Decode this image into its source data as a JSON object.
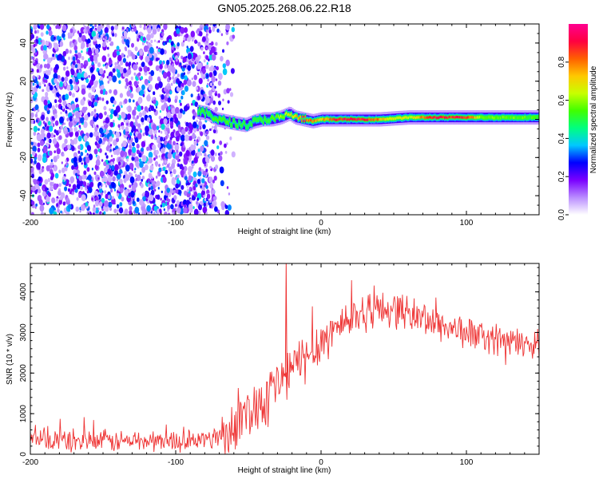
{
  "title": "GN05.2025.268.06.22.R18",
  "chart_data": [
    {
      "type": "heatmap",
      "xlabel": "Height of straight line (km)",
      "ylabel": "Frequency (Hz)",
      "xlim": [
        -200,
        150
      ],
      "ylim": [
        -50,
        50
      ],
      "xticks": [
        -200,
        -100,
        0,
        100
      ],
      "xtick_labels": [
        "-200",
        "-100",
        "0",
        "100"
      ],
      "yticks": [
        40,
        20,
        0,
        -20,
        -40
      ],
      "ytick_labels": [
        "40",
        "20",
        "0",
        "-20",
        "-40"
      ],
      "colorbar": {
        "label": "Normalized spectral amplitude",
        "range": [
          0.0,
          1.0
        ],
        "ticks": [
          0.0,
          0.2,
          0.4,
          0.6,
          0.8
        ],
        "tick_labels": [
          "0.0",
          "0.2",
          "0.4",
          "0.6",
          "0.8"
        ],
        "colormap_stops": [
          "#ffffff",
          "#b98cff",
          "#7a00ff",
          "#0000ff",
          "#00c8ff",
          "#00ff80",
          "#40ff00",
          "#c8ff00",
          "#ffc800",
          "#ff6000",
          "#ff0040",
          "#ff0090"
        ]
      },
      "noise_region_km": [
        -200,
        -72
      ],
      "signal_band": {
        "start_km": -85,
        "freq_trace": [
          {
            "x": -85,
            "y": 4
          },
          {
            "x": -78,
            "y": 3
          },
          {
            "x": -72,
            "y": 0
          },
          {
            "x": -66,
            "y": -1
          },
          {
            "x": -60,
            "y": -2
          },
          {
            "x": -52,
            "y": -3
          },
          {
            "x": -46,
            "y": -1
          },
          {
            "x": -40,
            "y": 0
          },
          {
            "x": -34,
            "y": 0
          },
          {
            "x": -28,
            "y": 1
          },
          {
            "x": -22,
            "y": 3
          },
          {
            "x": -18,
            "y": 1
          },
          {
            "x": -12,
            "y": 0
          },
          {
            "x": -6,
            "y": -1
          },
          {
            "x": 0,
            "y": 0
          },
          {
            "x": 20,
            "y": 0
          },
          {
            "x": 40,
            "y": 0
          },
          {
            "x": 60,
            "y": 1
          },
          {
            "x": 80,
            "y": 1
          },
          {
            "x": 100,
            "y": 1
          },
          {
            "x": 150,
            "y": 1
          }
        ],
        "amplitude_trace": [
          {
            "x": -85,
            "a": 0.5
          },
          {
            "x": -70,
            "a": 0.55
          },
          {
            "x": -50,
            "a": 0.5
          },
          {
            "x": -35,
            "a": 0.55
          },
          {
            "x": -20,
            "a": 0.7
          },
          {
            "x": -10,
            "a": 0.85
          },
          {
            "x": 0,
            "a": 0.75
          },
          {
            "x": 10,
            "a": 0.9
          },
          {
            "x": 30,
            "a": 0.92
          },
          {
            "x": 45,
            "a": 0.7
          },
          {
            "x": 60,
            "a": 0.65
          },
          {
            "x": 75,
            "a": 0.9
          },
          {
            "x": 100,
            "a": 0.92
          },
          {
            "x": 110,
            "a": 0.6
          },
          {
            "x": 150,
            "a": 0.55
          }
        ]
      }
    },
    {
      "type": "line",
      "series_color": "#ee3333",
      "xlabel": "Height of straight line (km)",
      "ylabel": "SNR (10 * v/v)",
      "xlim": [
        -200,
        150
      ],
      "ylim": [
        0,
        4700
      ],
      "xticks": [
        -200,
        -100,
        0,
        100
      ],
      "xtick_labels": [
        "-200",
        "-100",
        "0",
        "100"
      ],
      "yticks": [
        0,
        1000,
        2000,
        3000,
        4000
      ],
      "ytick_labels": [
        "0",
        "1000",
        "2000",
        "3000",
        "4000"
      ],
      "trend": [
        {
          "x": -200,
          "y": 350
        },
        {
          "x": -150,
          "y": 320
        },
        {
          "x": -90,
          "y": 330
        },
        {
          "x": -75,
          "y": 380
        },
        {
          "x": -65,
          "y": 600
        },
        {
          "x": -55,
          "y": 900
        },
        {
          "x": -45,
          "y": 1200
        },
        {
          "x": -35,
          "y": 1550
        },
        {
          "x": -25,
          "y": 1900
        },
        {
          "x": -15,
          "y": 2250
        },
        {
          "x": -5,
          "y": 2600
        },
        {
          "x": 5,
          "y": 2950
        },
        {
          "x": 15,
          "y": 3250
        },
        {
          "x": 25,
          "y": 3450
        },
        {
          "x": 35,
          "y": 3550
        },
        {
          "x": 50,
          "y": 3600
        },
        {
          "x": 70,
          "y": 3350
        },
        {
          "x": 90,
          "y": 3100
        },
        {
          "x": 110,
          "y": 2900
        },
        {
          "x": 130,
          "y": 2750
        },
        {
          "x": 150,
          "y": 2700
        }
      ],
      "noise_amplitude": [
        {
          "x": -200,
          "a": 300
        },
        {
          "x": -75,
          "a": 250
        },
        {
          "x": -65,
          "a": 600
        },
        {
          "x": -40,
          "a": 700
        },
        {
          "x": -10,
          "a": 650
        },
        {
          "x": 20,
          "a": 500
        },
        {
          "x": 60,
          "a": 450
        },
        {
          "x": 150,
          "a": 350
        }
      ],
      "spike": {
        "x": -24,
        "y": 4700
      },
      "sample_spacing_km": 0.5
    }
  ]
}
